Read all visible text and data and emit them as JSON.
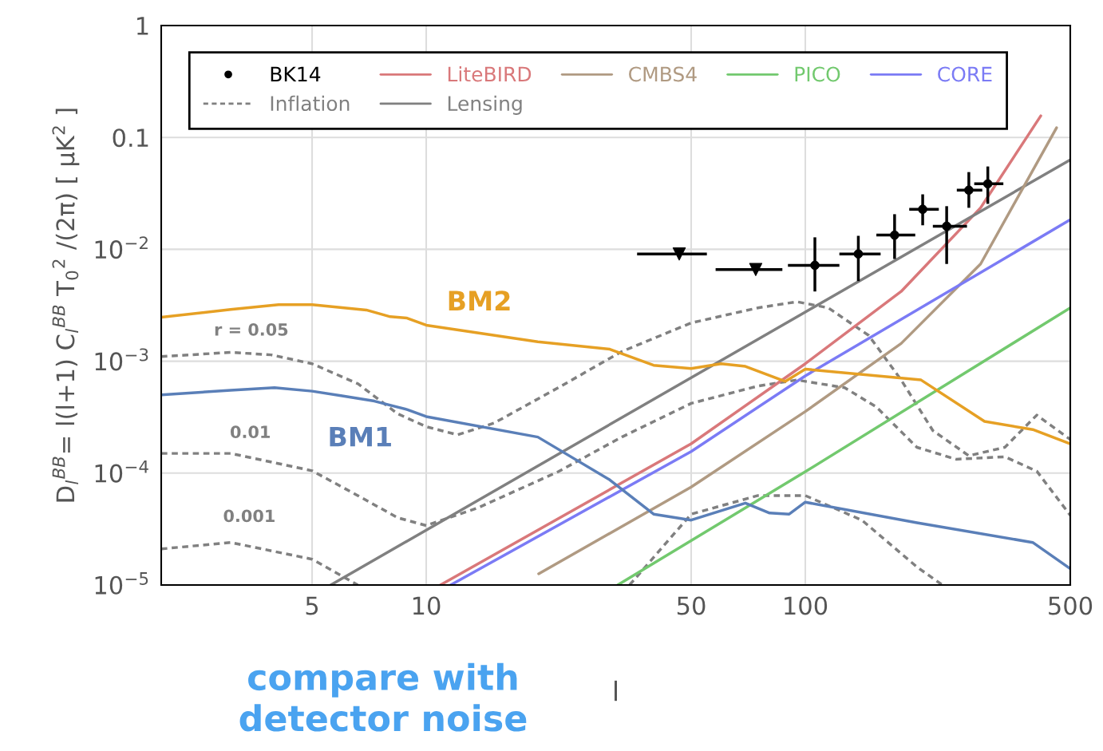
{
  "chart_data": {
    "type": "line",
    "xlabel": "l",
    "ylabel": "D$_{l}$$^{BB}$= l(l+1) C$_{l}$$^{BB}$ T$_{0}$$^{2}$ /(2π) [ μK$^{2}$ ]",
    "log": "xy",
    "xlim": [
      2,
      500
    ],
    "ylim": [
      1e-05,
      1
    ],
    "xticks": [
      5,
      10,
      50,
      100,
      500
    ],
    "yticks": [
      {
        "value": 1e-05,
        "label": "10$^{−5}$"
      },
      {
        "value": 0.0001,
        "label": "10$^{−4}$"
      },
      {
        "value": 0.001,
        "label": "10$^{−3}$"
      },
      {
        "value": 0.01,
        "label": "10$^{−2}$"
      },
      0.1,
      1
    ],
    "grid": true,
    "legend": "top left",
    "series": [
      {
        "name": "BK14",
        "type": "scatter",
        "color": "#000000",
        "marker": "circle",
        "x": [
          106,
          138,
          172,
          204,
          236,
          270,
          303
        ],
        "values": [
          0.0072,
          0.0091,
          0.0134,
          0.0228,
          0.0161,
          0.0338,
          0.0385
        ],
        "errors": [
          [
            0.0042,
            0.0128
          ],
          [
            0.0052,
            0.0132
          ],
          [
            0.0082,
            0.0206
          ],
          [
            0.0164,
            0.031
          ],
          [
            0.0074,
            0.0243
          ],
          [
            0.0235,
            0.049
          ],
          [
            0.0255,
            0.055
          ]
        ],
        "xerrors": [
          [
            90,
            123
          ],
          [
            123,
            158
          ],
          [
            154,
            195
          ],
          [
            188,
            225
          ],
          [
            217,
            267
          ],
          [
            251,
            293
          ],
          [
            279,
            333
          ]
        ]
      },
      {
        "type": "scatter",
        "color": "#000000",
        "marker": "triangle",
        "x": [
          46.5,
          74
        ],
        "values": [
          0.0091,
          0.0066
        ],
        "xerrors": [
          [
            36,
            55
          ],
          [
            58,
            87
          ]
        ]
      },
      {
        "name": "Inflation",
        "color": "#808080",
        "line_style": "dashed",
        "x": [
          2,
          3.05,
          3.9,
          5,
          6.6,
          8.4,
          10,
          12.1,
          15.1,
          22.3,
          32.8,
          50,
          75,
          95,
          115,
          147,
          179,
          217,
          270,
          336,
          408,
          500
        ],
        "values": [
          0.0011,
          0.0012,
          0.00114,
          0.00095,
          0.00063,
          0.00034,
          0.00026,
          0.00022,
          0.00028,
          0.00058,
          0.00122,
          0.0022,
          0.003,
          0.0034,
          0.003,
          0.0017,
          0.00068,
          0.00024,
          0.000143,
          0.00017,
          0.00033,
          0.0002
        ]
      },
      {
        "color": "#808080",
        "line_style": "dashed",
        "x": [
          2,
          3.05,
          5,
          6.6,
          8.4,
          10,
          13.7,
          22.3,
          32.8,
          50,
          75,
          95,
          127,
          154,
          197,
          250,
          336,
          408,
          500
        ],
        "values": [
          0.00015,
          0.00015,
          0.000105,
          6.3e-05,
          4e-05,
          3.4e-05,
          4.9e-05,
          0.000103,
          0.00021,
          0.00042,
          0.0006,
          0.00068,
          0.00058,
          0.00039,
          0.00017,
          0.000133,
          0.00014,
          0.000104,
          4.2e-05
        ]
      },
      {
        "color": "#808080",
        "line_style": "dashed",
        "x": [
          2,
          3.05,
          5,
          6.6,
          20,
          34.4,
          50,
          75,
          100,
          141,
          197,
          230
        ],
        "values": [
          2.1e-05,
          2.4e-05,
          1.7e-05,
          1e-05,
          null,
          1e-05,
          4.3e-05,
          6.3e-05,
          6.3e-05,
          3.8e-05,
          1.45e-05,
          1e-05
        ]
      },
      {
        "name": "LiteBIRD",
        "color": "#d9787a",
        "x": [
          10.9,
          50,
          100,
          179,
          290,
          418
        ],
        "values": [
          1e-05,
          0.000183,
          0.00095,
          0.0042,
          0.0235,
          0.156
        ]
      },
      {
        "name": "Lensing",
        "color": "#808080",
        "x": [
          5.6,
          100,
          500
        ],
        "values": [
          1e-05,
          0.00275,
          0.063
        ]
      },
      {
        "name": "CMBS4",
        "color": "#b09a82",
        "x": [
          19.8,
          50,
          100,
          179,
          290,
          460
        ],
        "values": [
          1.26e-05,
          7.5e-05,
          0.000355,
          0.00144,
          0.0074,
          0.122
        ]
      },
      {
        "name": "PICO",
        "color": "#72c96e",
        "x": [
          32,
          100,
          500
        ],
        "values": [
          1e-05,
          0.000103,
          0.003
        ]
      },
      {
        "name": "CORE",
        "color": "#7b7bf5",
        "x": [
          11.6,
          50,
          100,
          500
        ],
        "values": [
          1e-05,
          0.000156,
          0.00074,
          0.0184
        ]
      },
      {
        "color": "#e6a024",
        "x": [
          2,
          3.05,
          4.08,
          5,
          6.95,
          8.04,
          8.9,
          10,
          19.7,
          30.5,
          39.8,
          50,
          60,
          69.5,
          88.5,
          100,
          202,
          297,
          398,
          500
        ],
        "values": [
          0.00247,
          0.0029,
          0.0032,
          0.0032,
          0.00287,
          0.0025,
          0.00243,
          0.0021,
          0.00149,
          0.00128,
          0.00092,
          0.00086,
          0.00095,
          0.0009,
          0.00066,
          0.00085,
          0.00068,
          0.00029,
          0.000245,
          0.000183
        ]
      },
      {
        "color": "#5a7fb8",
        "x": [
          2,
          3.05,
          3.98,
          5,
          6,
          7.3,
          8.9,
          10,
          19.7,
          30.5,
          39.8,
          50,
          69.5,
          80.5,
          90.7,
          100,
          197,
          398,
          500
        ],
        "values": [
          0.0005,
          0.00055,
          0.00058,
          0.00054,
          0.00049,
          0.00044,
          0.00037,
          0.00032,
          0.00021,
          8.7e-05,
          4.3e-05,
          3.8e-05,
          5.4e-05,
          4.4e-05,
          4.3e-05,
          5.5e-05,
          3.6e-05,
          2.4e-05,
          1.4e-05
        ]
      }
    ],
    "annotations": [
      "BM2",
      "BM1",
      "r = 0.05",
      "0.01",
      "0.001",
      "compare with\ndetector noise"
    ]
  }
}
